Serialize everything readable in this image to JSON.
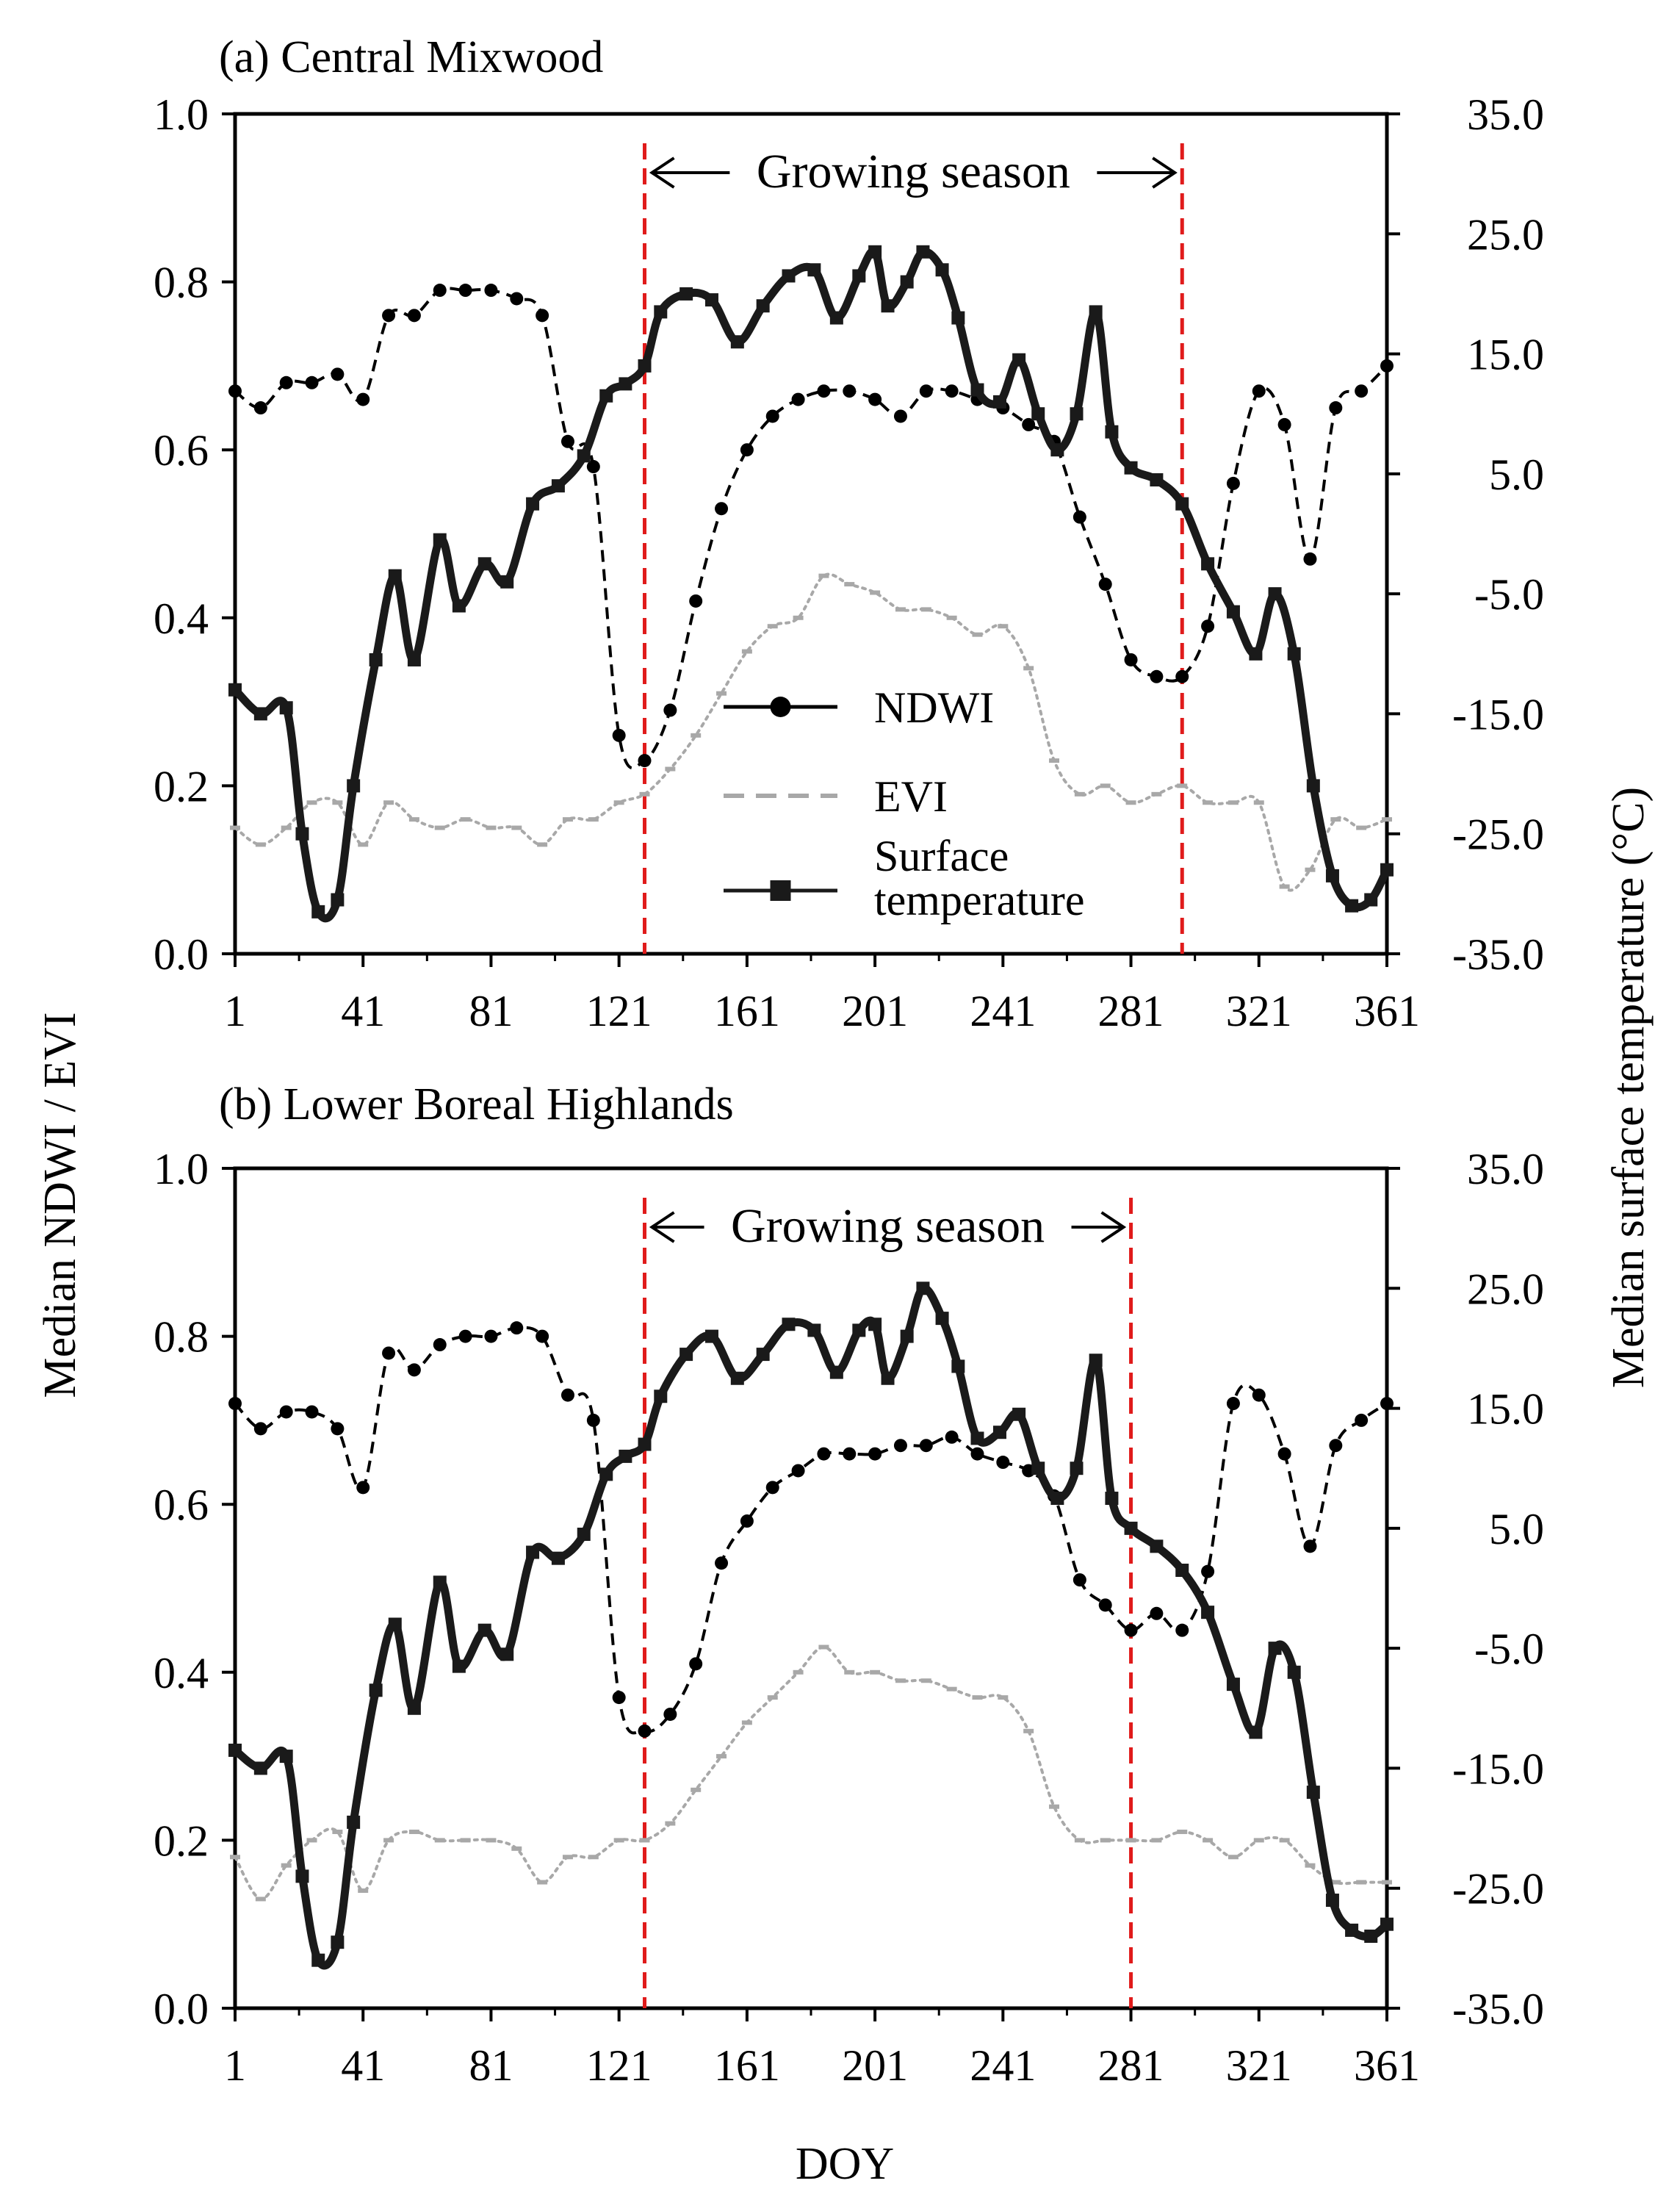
{
  "figure": {
    "left_axis_title": "Median NDWI / EVI",
    "right_axis_title": "Median surface temperature (°C)",
    "x_axis_title": "DOY",
    "growing_season_label": "Growing season",
    "colors": {
      "ndwi": "#000000",
      "evi": "#a8a8a8",
      "temperature": "#1a1a1a",
      "season_marker": "#e01b1b"
    }
  },
  "legend": {
    "items": [
      {
        "key": "ndwi",
        "label": "NDWI",
        "marker": "circle",
        "line": "dashed"
      },
      {
        "key": "evi",
        "label": "EVI",
        "marker": "dash",
        "line": "dotted"
      },
      {
        "key": "temperature",
        "label": "Surface temperature",
        "label_lines": [
          "Surface",
          "temperature"
        ],
        "marker": "square",
        "line": "solid"
      }
    ]
  },
  "chart_data": [
    {
      "type": "line",
      "title": "(a) Central Mixwood",
      "xlabel": "DOY",
      "ylabel": "Median NDWI / EVI",
      "y2label": "Median surface temperature (°C)",
      "xlim": [
        1,
        361
      ],
      "xticks": [
        1,
        41,
        81,
        121,
        161,
        201,
        241,
        281,
        321,
        361
      ],
      "ylim": [
        0.0,
        1.0
      ],
      "yticks": [
        "0.0",
        "0.2",
        "0.4",
        "0.6",
        "0.8",
        "1.0"
      ],
      "y2lim": [
        -35.0,
        35.0
      ],
      "y2ticks": [
        "-35.0",
        "-25.0",
        "-15.0",
        "-5.0",
        "5.0",
        "15.0",
        "25.0",
        "35.0"
      ],
      "growing_season": {
        "start": 129,
        "end": 297,
        "label": "Growing season"
      },
      "series": [
        {
          "name": "NDWI",
          "axis": "left",
          "x": [
            1,
            9,
            17,
            25,
            33,
            41,
            49,
            57,
            65,
            73,
            81,
            89,
            97,
            105,
            113,
            121,
            129,
            137,
            145,
            153,
            161,
            169,
            177,
            185,
            193,
            201,
            209,
            217,
            225,
            233,
            241,
            249,
            257,
            265,
            273,
            281,
            289,
            297,
            305,
            313,
            321,
            329,
            337,
            345,
            353,
            361
          ],
          "values": [
            0.67,
            0.65,
            0.68,
            0.68,
            0.69,
            0.66,
            0.76,
            0.76,
            0.79,
            0.79,
            0.79,
            0.78,
            0.76,
            0.61,
            0.58,
            0.26,
            0.23,
            0.29,
            0.42,
            0.53,
            0.6,
            0.64,
            0.66,
            0.67,
            0.67,
            0.66,
            0.64,
            0.67,
            0.67,
            0.66,
            0.65,
            0.63,
            0.61,
            0.52,
            0.44,
            0.35,
            0.33,
            0.33,
            0.39,
            0.56,
            0.67,
            0.63,
            0.47,
            0.65,
            0.67,
            0.7
          ]
        },
        {
          "name": "EVI",
          "axis": "left",
          "x": [
            1,
            9,
            17,
            25,
            33,
            41,
            49,
            57,
            65,
            73,
            81,
            89,
            97,
            105,
            113,
            121,
            129,
            137,
            145,
            153,
            161,
            169,
            177,
            185,
            193,
            201,
            209,
            217,
            225,
            233,
            241,
            249,
            257,
            265,
            273,
            281,
            289,
            297,
            305,
            313,
            321,
            329,
            337,
            345,
            353,
            361
          ],
          "values": [
            0.15,
            0.13,
            0.15,
            0.18,
            0.18,
            0.13,
            0.18,
            0.16,
            0.15,
            0.16,
            0.15,
            0.15,
            0.13,
            0.16,
            0.16,
            0.18,
            0.19,
            0.22,
            0.26,
            0.31,
            0.36,
            0.39,
            0.4,
            0.45,
            0.44,
            0.43,
            0.41,
            0.41,
            0.4,
            0.38,
            0.39,
            0.34,
            0.23,
            0.19,
            0.2,
            0.18,
            0.19,
            0.2,
            0.18,
            0.18,
            0.18,
            0.08,
            0.1,
            0.16,
            0.15,
            0.16
          ]
        },
        {
          "name": "Surface temperature",
          "axis": "right",
          "x": [
            1,
            9,
            17,
            22,
            27,
            33,
            38,
            45,
            51,
            57,
            65,
            71,
            79,
            86,
            94,
            102,
            110,
            117,
            123,
            129,
            134,
            142,
            150,
            158,
            166,
            174,
            182,
            189,
            196,
            201,
            205,
            211,
            216,
            222,
            227,
            233,
            240,
            246,
            252,
            258,
            264,
            270,
            275,
            281,
            289,
            297,
            305,
            313,
            320,
            326,
            332,
            338,
            344,
            350,
            356,
            361
          ],
          "values": [
            -13.0,
            -15.0,
            -14.5,
            -25.0,
            -31.5,
            -30.5,
            -21.0,
            -10.5,
            -3.5,
            -10.5,
            -0.5,
            -6.0,
            -2.5,
            -4.0,
            2.5,
            4.0,
            6.5,
            11.5,
            12.5,
            14.0,
            18.5,
            20.0,
            19.5,
            16.0,
            19.0,
            21.5,
            22.0,
            18.0,
            21.5,
            23.5,
            19.0,
            21.0,
            23.5,
            22.0,
            18.0,
            12.0,
            11.0,
            14.5,
            10.0,
            7.0,
            10.0,
            18.5,
            8.5,
            5.5,
            4.5,
            2.5,
            -2.5,
            -6.5,
            -10.0,
            -5.0,
            -10.0,
            -21.0,
            -28.5,
            -31.0,
            -30.5,
            -28.0
          ]
        }
      ]
    },
    {
      "type": "line",
      "title": "(b) Lower Boreal Highlands",
      "xlabel": "DOY",
      "ylabel": "Median NDWI / EVI",
      "y2label": "Median surface temperature (°C)",
      "xlim": [
        1,
        361
      ],
      "xticks": [
        1,
        41,
        81,
        121,
        161,
        201,
        241,
        281,
        321,
        361
      ],
      "ylim": [
        0.0,
        1.0
      ],
      "yticks": [
        "0.0",
        "0.2",
        "0.4",
        "0.6",
        "0.8",
        "1.0"
      ],
      "y2lim": [
        -35.0,
        35.0
      ],
      "y2ticks": [
        "-35.0",
        "-25.0",
        "-15.0",
        "-5.0",
        "5.0",
        "15.0",
        "25.0",
        "35.0"
      ],
      "growing_season": {
        "start": 129,
        "end": 281,
        "label": "Growing season"
      },
      "series": [
        {
          "name": "NDWI",
          "axis": "left",
          "x": [
            1,
            9,
            17,
            25,
            33,
            41,
            49,
            57,
            65,
            73,
            81,
            89,
            97,
            105,
            113,
            121,
            129,
            137,
            145,
            153,
            161,
            169,
            177,
            185,
            193,
            201,
            209,
            217,
            225,
            233,
            241,
            249,
            257,
            265,
            273,
            281,
            289,
            297,
            305,
            313,
            321,
            329,
            337,
            345,
            353,
            361
          ],
          "values": [
            0.72,
            0.69,
            0.71,
            0.71,
            0.69,
            0.62,
            0.78,
            0.76,
            0.79,
            0.8,
            0.8,
            0.81,
            0.8,
            0.73,
            0.7,
            0.37,
            0.33,
            0.35,
            0.41,
            0.53,
            0.58,
            0.62,
            0.64,
            0.66,
            0.66,
            0.66,
            0.67,
            0.67,
            0.68,
            0.66,
            0.65,
            0.64,
            0.61,
            0.51,
            0.48,
            0.45,
            0.47,
            0.45,
            0.52,
            0.72,
            0.73,
            0.66,
            0.55,
            0.67,
            0.7,
            0.72
          ]
        },
        {
          "name": "EVI",
          "axis": "left",
          "x": [
            1,
            9,
            17,
            25,
            33,
            41,
            49,
            57,
            65,
            73,
            81,
            89,
            97,
            105,
            113,
            121,
            129,
            137,
            145,
            153,
            161,
            169,
            177,
            185,
            193,
            201,
            209,
            217,
            225,
            233,
            241,
            249,
            257,
            265,
            273,
            281,
            289,
            297,
            305,
            313,
            321,
            329,
            337,
            345,
            353,
            361
          ],
          "values": [
            0.18,
            0.13,
            0.17,
            0.2,
            0.21,
            0.14,
            0.2,
            0.21,
            0.2,
            0.2,
            0.2,
            0.19,
            0.15,
            0.18,
            0.18,
            0.2,
            0.2,
            0.22,
            0.26,
            0.3,
            0.34,
            0.37,
            0.4,
            0.43,
            0.4,
            0.4,
            0.39,
            0.39,
            0.38,
            0.37,
            0.37,
            0.33,
            0.24,
            0.2,
            0.2,
            0.2,
            0.2,
            0.21,
            0.2,
            0.18,
            0.2,
            0.2,
            0.17,
            0.15,
            0.15,
            0.15
          ]
        },
        {
          "name": "Surface temperature",
          "axis": "right",
          "x": [
            1,
            9,
            17,
            22,
            27,
            33,
            38,
            45,
            51,
            57,
            65,
            71,
            79,
            86,
            94,
            102,
            110,
            117,
            123,
            129,
            134,
            142,
            150,
            158,
            166,
            174,
            182,
            189,
            196,
            201,
            205,
            211,
            216,
            222,
            227,
            233,
            240,
            246,
            252,
            258,
            264,
            270,
            275,
            281,
            289,
            297,
            305,
            313,
            320,
            326,
            332,
            338,
            344,
            350,
            356,
            361
          ],
          "values": [
            -13.5,
            -15.0,
            -14.0,
            -24.0,
            -31.0,
            -29.5,
            -19.5,
            -8.5,
            -3.0,
            -10.0,
            0.5,
            -6.5,
            -3.5,
            -5.5,
            3.0,
            2.5,
            4.5,
            9.5,
            11.0,
            12.0,
            16.0,
            19.5,
            21.0,
            17.5,
            19.5,
            22.0,
            21.5,
            18.0,
            21.5,
            22.0,
            17.5,
            21.0,
            25.0,
            22.5,
            18.5,
            12.5,
            13.0,
            14.5,
            10.0,
            7.5,
            10.0,
            19.0,
            7.5,
            5.0,
            3.5,
            1.5,
            -2.0,
            -8.0,
            -12.0,
            -5.0,
            -7.0,
            -17.0,
            -26.0,
            -28.5,
            -29.0,
            -28.0
          ]
        }
      ]
    }
  ]
}
